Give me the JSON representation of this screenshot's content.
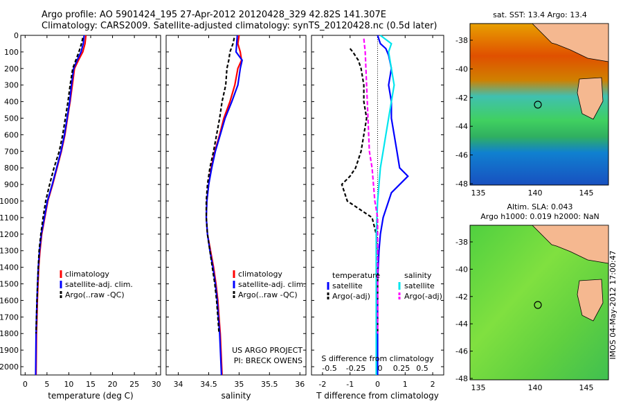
{
  "header": {
    "line1": "Argo profile: AO 5901424_195 27-Apr-2012 20120428_329 42.82S 141.307E",
    "line2": "Climatology: CARS2009. Satellite-adjusted climatology: synTS_20120428.nc (0.5d later)"
  },
  "colors": {
    "climatology": "#ff0000",
    "satellite": "#0000ff",
    "argo": "#000000",
    "sal_satellite": "#00e5ee",
    "sal_argo": "#ff00ff"
  },
  "chart_data": [
    {
      "id": "temperature",
      "type": "line",
      "xlabel": "temperature (deg C)",
      "ylabel": "",
      "xlim": [
        -1,
        31
      ],
      "ylim": [
        2050,
        0
      ],
      "xticks": [
        0,
        5,
        10,
        15,
        20,
        25,
        30
      ],
      "yticks": [
        0,
        100,
        200,
        300,
        400,
        500,
        600,
        700,
        800,
        900,
        1000,
        1100,
        1200,
        1300,
        1400,
        1500,
        1600,
        1700,
        1800,
        1900,
        2000
      ],
      "legend": [
        "climatology",
        "satellite-adj. clim.",
        "Argo(..raw -QC)"
      ],
      "series": [
        {
          "name": "climatology",
          "x": [
            13.9,
            13.7,
            13.2,
            12.2,
            11.3,
            10.8,
            10.3,
            9.7,
            9.1,
            8.3,
            7.3,
            6.3,
            5.2,
            4.5,
            3.8,
            3.4,
            3.1,
            2.95,
            2.8,
            2.7,
            2.6,
            2.5
          ],
          "y": [
            0,
            50,
            100,
            150,
            200,
            300,
            400,
            500,
            600,
            700,
            800,
            900,
            1000,
            1100,
            1200,
            1300,
            1400,
            1500,
            1600,
            1700,
            1800,
            2050
          ]
        },
        {
          "name": "satellite-adj. clim.",
          "x": [
            13.5,
            13.3,
            12.8,
            11.9,
            11.1,
            10.6,
            10.2,
            9.6,
            9.0,
            8.2,
            7.2,
            6.2,
            5.1,
            4.4,
            3.7,
            3.3,
            3.0,
            2.85,
            2.7,
            2.6,
            2.5,
            2.4
          ],
          "y": [
            0,
            50,
            100,
            150,
            200,
            300,
            400,
            500,
            600,
            700,
            800,
            900,
            1000,
            1100,
            1200,
            1300,
            1400,
            1500,
            1600,
            1700,
            1800,
            2050
          ]
        },
        {
          "name": "Argo(..raw -QC)",
          "x": [
            13.2,
            12.9,
            12.3,
            11.6,
            10.9,
            10.3,
            9.8,
            9.2,
            8.6,
            7.8,
            6.6,
            5.6,
            4.7,
            4.1,
            3.6,
            3.2,
            3.0,
            2.85,
            2.7,
            2.6,
            2.5
          ],
          "y": [
            15,
            50,
            100,
            150,
            200,
            300,
            400,
            500,
            600,
            700,
            800,
            900,
            1000,
            1100,
            1200,
            1300,
            1400,
            1500,
            1600,
            1700,
            1800
          ]
        }
      ]
    },
    {
      "id": "salinity",
      "type": "line",
      "xlabel": "salinity",
      "xlim": [
        33.8,
        36.1
      ],
      "ylim": [
        2050,
        0
      ],
      "xticks": [
        34,
        34.5,
        35,
        35.5,
        36
      ],
      "legend": [
        "climatology",
        "satellite-adj. clim.",
        "Argo(..raw -QC)"
      ],
      "annotation": [
        "US ARGO PROJECT",
        "PI: BRECK OWENS"
      ],
      "series": [
        {
          "name": "climatology",
          "x": [
            35.0,
            34.98,
            35.02,
            35.04,
            34.98,
            34.93,
            34.85,
            34.75,
            34.68,
            34.6,
            34.54,
            34.5,
            34.47,
            34.46,
            34.48,
            34.53,
            34.58,
            34.62,
            34.65,
            34.67,
            34.69,
            34.72
          ],
          "y": [
            0,
            50,
            100,
            150,
            200,
            300,
            400,
            500,
            600,
            700,
            800,
            900,
            1000,
            1100,
            1200,
            1300,
            1400,
            1500,
            1600,
            1700,
            1800,
            2050
          ]
        },
        {
          "name": "satellite-adj. clim.",
          "x": [
            34.97,
            34.96,
            34.95,
            35.05,
            35.02,
            34.98,
            34.88,
            34.77,
            34.69,
            34.61,
            34.55,
            34.5,
            34.47,
            34.46,
            34.48,
            34.52,
            34.57,
            34.61,
            34.64,
            34.66,
            34.68,
            34.71
          ],
          "y": [
            0,
            50,
            100,
            150,
            200,
            300,
            400,
            500,
            600,
            700,
            800,
            900,
            1000,
            1100,
            1200,
            1300,
            1400,
            1500,
            1600,
            1700,
            1800,
            2050
          ]
        },
        {
          "name": "Argo(..raw -QC)",
          "x": [
            34.92,
            34.9,
            34.85,
            34.83,
            34.8,
            34.78,
            34.72,
            34.68,
            34.63,
            34.58,
            34.52,
            34.48,
            34.46,
            34.46,
            34.48,
            34.52,
            34.56,
            34.6,
            34.63,
            34.65,
            34.67
          ],
          "y": [
            15,
            50,
            100,
            150,
            200,
            300,
            400,
            500,
            600,
            700,
            800,
            900,
            1000,
            1100,
            1200,
            1300,
            1400,
            1500,
            1600,
            1700,
            1800
          ]
        }
      ]
    },
    {
      "id": "difference",
      "type": "line",
      "xlabel": "T difference from climatology",
      "top_xlabel": "S difference from climatology",
      "xlim": [
        -2.4,
        2.4
      ],
      "ylim": [
        2050,
        0
      ],
      "xticks": [
        -2,
        -1,
        0,
        1,
        2
      ],
      "top_xticks": [
        "-0.5",
        "-0.25",
        "0",
        "0.25",
        "0.5"
      ],
      "legend_headers": [
        "temperature",
        "salinity"
      ],
      "legend": [
        "satellite",
        "Argo(-adj)",
        "satellite",
        "Argo(-adj)"
      ],
      "series": [
        {
          "name": "satellite",
          "x": [
            0,
            0.1,
            0.3,
            0.4,
            0.5,
            0.4,
            0.5,
            0.5,
            0.6,
            0.7,
            0.8,
            1.1,
            0.5,
            0.2,
            0.1,
            0.05,
            0.02,
            0,
            0,
            0,
            0
          ],
          "y": [
            0,
            50,
            80,
            120,
            200,
            300,
            400,
            500,
            600,
            700,
            800,
            850,
            950,
            1100,
            1200,
            1300,
            1400,
            1500,
            1600,
            1800,
            2050
          ]
        },
        {
          "name": "Argo(-adj)",
          "x": [
            -1,
            -0.9,
            -0.7,
            -0.6,
            -0.5,
            -0.5,
            -0.4,
            -0.5,
            -0.6,
            -0.8,
            -1.0,
            -1.3,
            -1.1,
            -0.2,
            -0.05,
            0,
            0
          ],
          "y": [
            80,
            100,
            150,
            200,
            300,
            400,
            500,
            600,
            700,
            800,
            850,
            900,
            1000,
            1100,
            1200,
            1400,
            1800
          ]
        },
        {
          "name": "salinity satellite",
          "x": [
            0.1,
            0.5,
            0.4,
            0.5,
            0.6,
            0.5,
            0.4,
            0.3,
            0.2,
            0.1,
            0.05,
            0,
            -0.05,
            -0.05,
            -0.05,
            -0.05
          ],
          "y": [
            0,
            50,
            100,
            200,
            300,
            400,
            500,
            600,
            700,
            800,
            900,
            1000,
            1200,
            1500,
            1800,
            2050
          ]
        },
        {
          "name": "salinity Argo(-adj)",
          "x": [
            -0.5,
            -0.45,
            -0.4,
            -0.35,
            -0.3,
            -0.2,
            -0.15,
            -0.1,
            0,
            0,
            0
          ],
          "y": [
            20,
            100,
            300,
            500,
            700,
            800,
            900,
            1000,
            1100,
            1400,
            1800
          ]
        }
      ]
    }
  ],
  "maps": [
    {
      "id": "sst_map",
      "title": "sat. SST: 13.4 Argo: 13.4",
      "xticks": [
        "135",
        "140",
        "145"
      ],
      "yticks": [
        "-38",
        "-40",
        "-42",
        "-44",
        "-46",
        "-48"
      ]
    },
    {
      "id": "sla_map",
      "title_line1": "Altim. SLA: 0.043",
      "title_line2": "Argo h1000: 0.019 h2000: NaN",
      "xticks": [
        "135",
        "140",
        "145"
      ],
      "yticks": [
        "-38",
        "-40",
        "-42",
        "-44",
        "-46",
        "-48"
      ]
    }
  ],
  "watermark": "IMOS 04-May-2012 17:00:47"
}
